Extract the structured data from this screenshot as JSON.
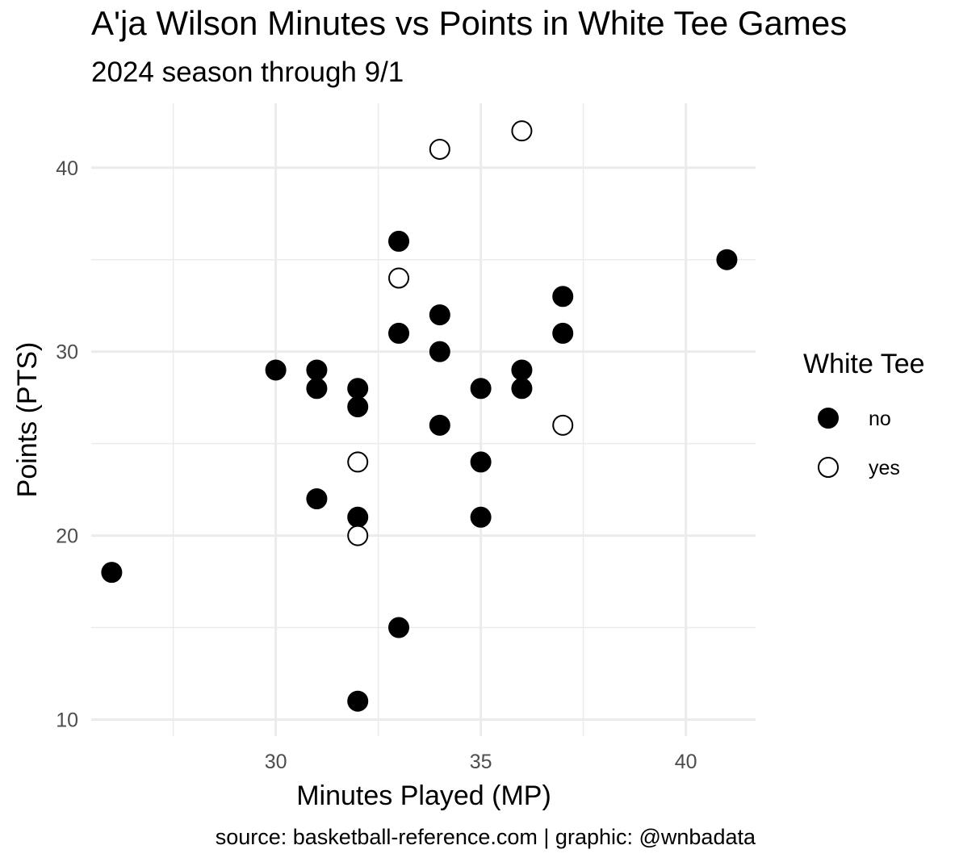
{
  "chart_data": {
    "type": "scatter",
    "title": "A'ja Wilson Minutes vs Points in White Tee Games",
    "subtitle": "2024 season through 9/1",
    "xlabel": "Minutes Played (MP)",
    "ylabel": "Points (PTS)",
    "caption": "source: basketball-reference.com | graphic: @wnbadata",
    "xlim": [
      25.5,
      41.7
    ],
    "ylim": [
      9.1,
      43.5
    ],
    "x_ticks": [
      30,
      35,
      40
    ],
    "y_ticks": [
      10,
      20,
      30,
      40
    ],
    "grid": true,
    "legend": {
      "title": "White Tee",
      "position": "right",
      "entries": [
        {
          "key": "no",
          "label": "no",
          "fill": "#000000"
        },
        {
          "key": "yes",
          "label": "yes",
          "fill": "#ffffff"
        }
      ]
    },
    "series": [
      {
        "name": "no",
        "points": [
          {
            "x": 26,
            "y": 18
          },
          {
            "x": 30,
            "y": 29
          },
          {
            "x": 31,
            "y": 29
          },
          {
            "x": 31,
            "y": 28
          },
          {
            "x": 31,
            "y": 22
          },
          {
            "x": 32,
            "y": 28
          },
          {
            "x": 32,
            "y": 27
          },
          {
            "x": 32,
            "y": 21
          },
          {
            "x": 32,
            "y": 11
          },
          {
            "x": 33,
            "y": 36
          },
          {
            "x": 33,
            "y": 31
          },
          {
            "x": 33,
            "y": 15
          },
          {
            "x": 34,
            "y": 32
          },
          {
            "x": 34,
            "y": 30
          },
          {
            "x": 34,
            "y": 26
          },
          {
            "x": 35,
            "y": 28
          },
          {
            "x": 35,
            "y": 24
          },
          {
            "x": 35,
            "y": 21
          },
          {
            "x": 36,
            "y": 29
          },
          {
            "x": 36,
            "y": 28
          },
          {
            "x": 37,
            "y": 33
          },
          {
            "x": 37,
            "y": 31
          },
          {
            "x": 41,
            "y": 35
          }
        ]
      },
      {
        "name": "yes",
        "points": [
          {
            "x": 32,
            "y": 24
          },
          {
            "x": 32,
            "y": 20
          },
          {
            "x": 33,
            "y": 34
          },
          {
            "x": 34,
            "y": 41
          },
          {
            "x": 36,
            "y": 42
          },
          {
            "x": 37,
            "y": 26
          }
        ]
      }
    ]
  }
}
